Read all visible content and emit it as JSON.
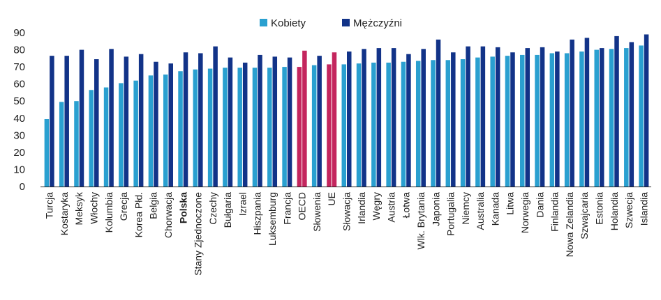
{
  "chart_data": {
    "type": "bar",
    "title": "",
    "xlabel": "",
    "ylabel": "",
    "ylim": [
      0,
      90
    ],
    "yticks": [
      0,
      10,
      20,
      30,
      40,
      50,
      60,
      70,
      80,
      90
    ],
    "grid": false,
    "legend_position": "top-center",
    "categories": [
      "Turcja",
      "Kostaryka",
      "Meksyk",
      "Włochy",
      "Kolumbia",
      "Grecja",
      "Korea Płd.",
      "Belgia",
      "Chorwacja",
      "Polska",
      "Stany Zjednoczone",
      "Czechy",
      "Bułgaria",
      "Izrael",
      "Hiszpania",
      "Luksemburg",
      "Francja",
      "OECD",
      "Słowenia",
      "UE",
      "Słowacja",
      "Irlandia",
      "Węgry",
      "Austria",
      "Łotwa",
      "Wlk. Brytania",
      "Japonia",
      "Portugalia",
      "Niemcy",
      "Australia",
      "Kanada",
      "Litwa",
      "Norwegia",
      "Dania",
      "Finlandia",
      "Nowa Zelandia",
      "Szwajcaria",
      "Estonia",
      "Holandia",
      "Szwecja",
      "Islandia"
    ],
    "series": [
      {
        "name": "Kobiety",
        "color": "#2aa0d0",
        "values": [
          39.5,
          49.5,
          50,
          56.5,
          58,
          60.5,
          62,
          65,
          65.5,
          67.5,
          68.5,
          69,
          69.5,
          69.5,
          69.5,
          69.5,
          70,
          70,
          71,
          71.5,
          71.5,
          72,
          72.5,
          72.5,
          73,
          73.5,
          74,
          74,
          74.5,
          75.5,
          76,
          76.5,
          77,
          77,
          78,
          78,
          79,
          80,
          80.5,
          81,
          82.5
        ]
      },
      {
        "name": "Mężczyźni",
        "color": "#123388",
        "values": [
          76.5,
          76.5,
          80,
          74.5,
          80.5,
          76,
          77.5,
          73,
          72,
          78.5,
          78,
          82,
          75.5,
          72.5,
          77,
          76,
          75.5,
          79.5,
          76.5,
          78.5,
          79,
          80.5,
          81,
          81,
          77.5,
          80.5,
          86,
          78.5,
          82,
          82,
          81.5,
          78.5,
          81,
          81.5,
          79,
          86,
          87,
          81,
          88,
          84.5,
          89
        ]
      }
    ],
    "highlight_categories": {
      "OECD": "#c4265e",
      "UE": "#c4265e"
    },
    "highlight_label": {
      "category": "Polska",
      "color": "#e0142b"
    },
    "label_colors": {
      "Chorwacja": "#1e3a8c"
    }
  },
  "legend": {
    "items": [
      {
        "label": "Kobiety",
        "color": "#2aa0d0"
      },
      {
        "label": "Mężczyźni",
        "color": "#123388"
      }
    ]
  }
}
